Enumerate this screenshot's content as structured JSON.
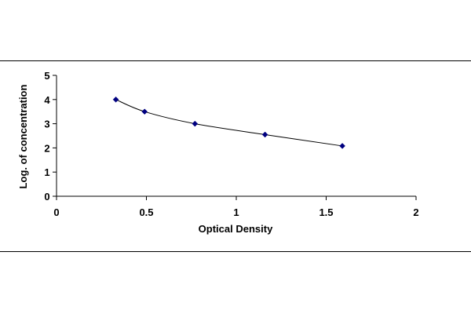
{
  "chart_data": {
    "type": "scatter",
    "title": "",
    "xlabel": "Optical Density",
    "ylabel": "Log. of concentration",
    "xlim": [
      0,
      2
    ],
    "ylim": [
      0,
      5
    ],
    "x_ticks": [
      "0",
      "0.5",
      "1",
      "1.5",
      "2"
    ],
    "y_ticks": [
      "0",
      "1",
      "2",
      "3",
      "4",
      "5"
    ],
    "grid": false,
    "legend": "none",
    "trendline": "smooth curve through points",
    "marker_color": "#000080",
    "series": [
      {
        "x": [
          0.33,
          0.49,
          0.77,
          1.16,
          1.59
        ],
        "y": [
          4.0,
          3.5,
          3.0,
          2.55,
          2.08
        ]
      }
    ]
  }
}
